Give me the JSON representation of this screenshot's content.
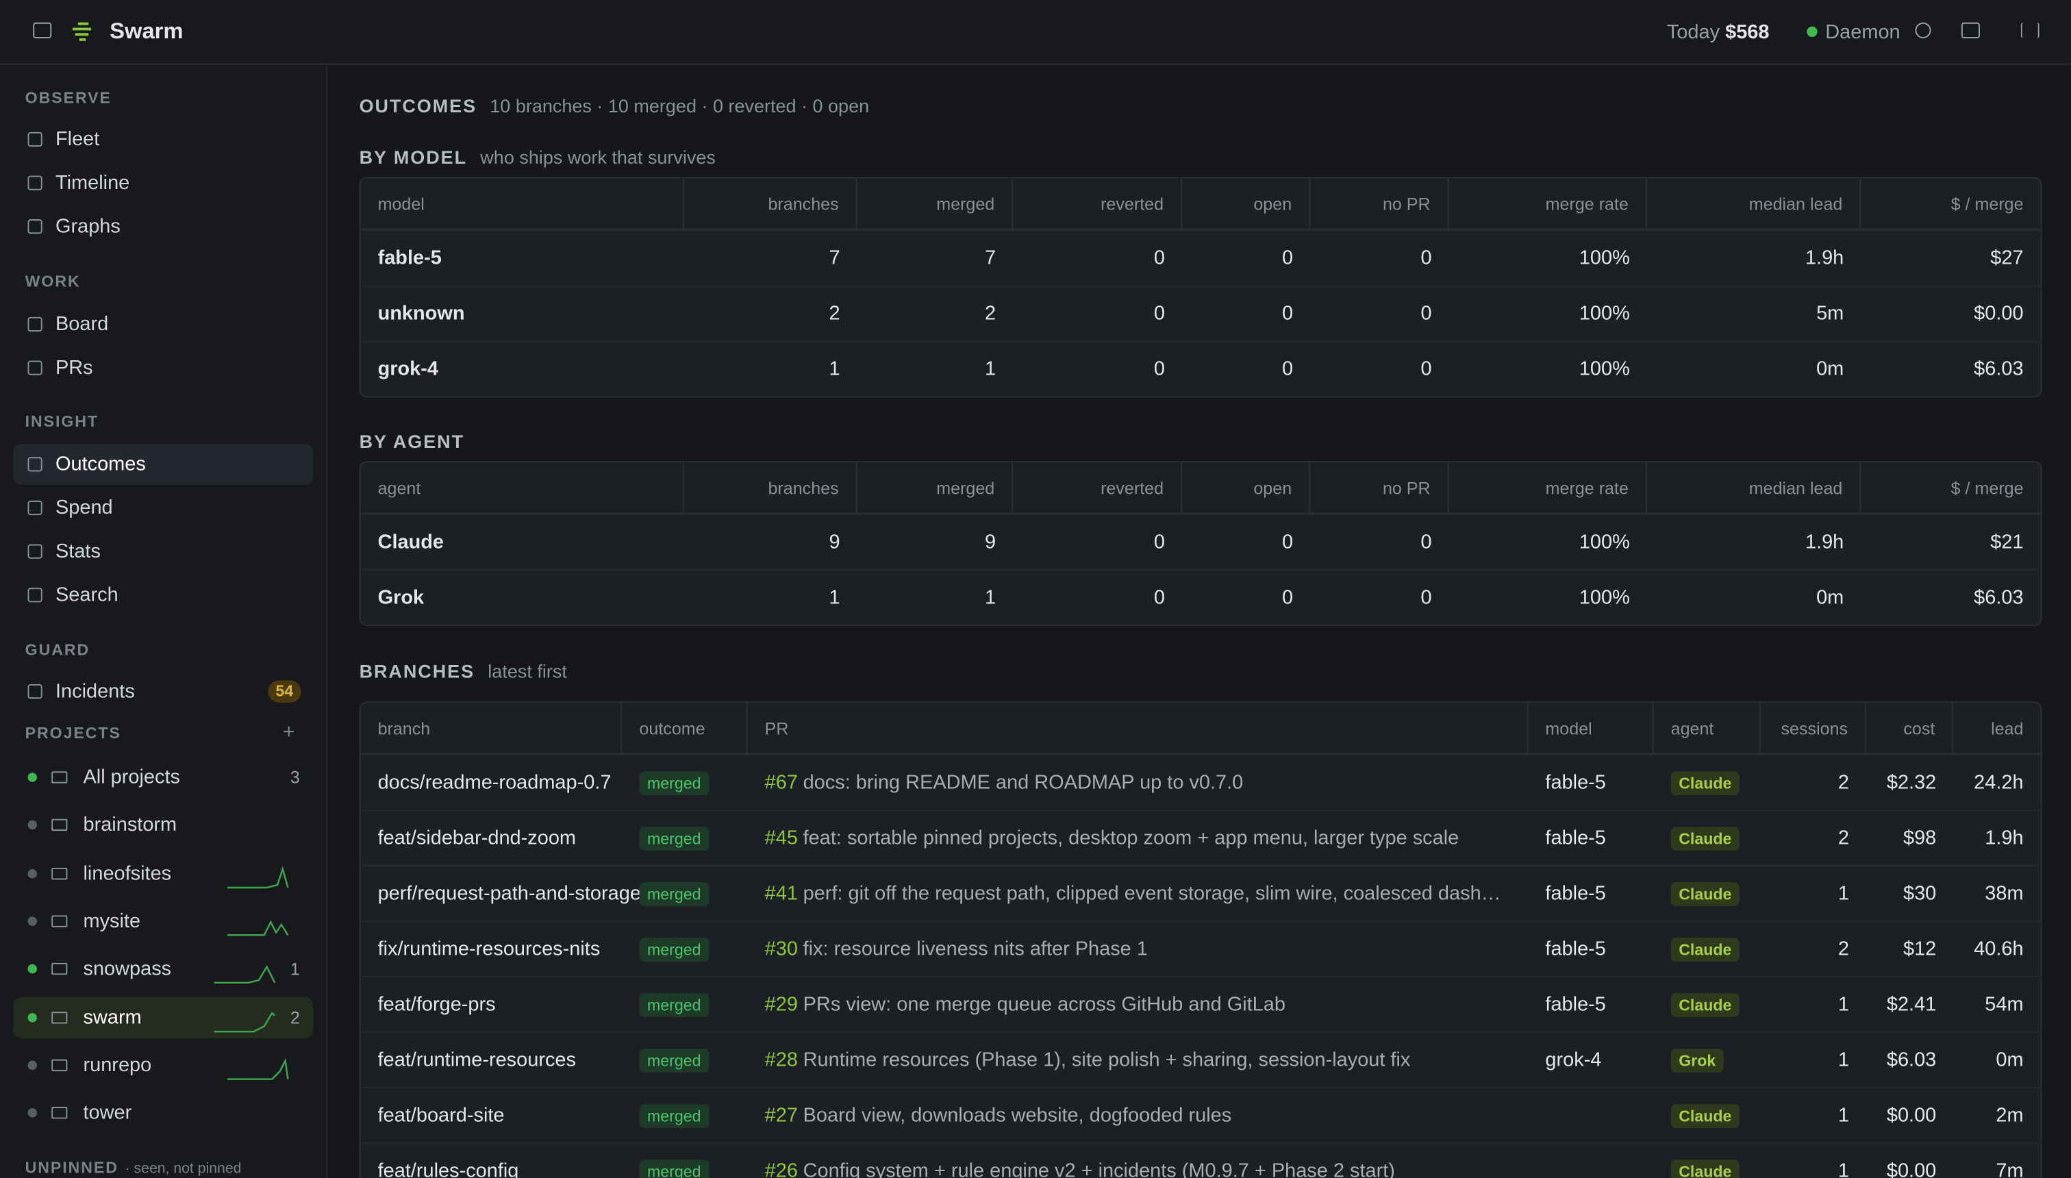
{
  "header": {
    "title": "Swarm",
    "today_label": "Today",
    "today_value": "$568",
    "daemon": "Daemon"
  },
  "sidebar": {
    "sections": [
      {
        "heading": "OBSERVE",
        "items": [
          "Fleet",
          "Timeline",
          "Graphs"
        ]
      },
      {
        "heading": "WORK",
        "items": [
          "Board",
          "PRs"
        ]
      },
      {
        "heading": "INSIGHT",
        "items": [
          "Outcomes",
          "Spend",
          "Stats",
          "Search"
        ]
      },
      {
        "heading": "GUARD",
        "items": [
          "Incidents"
        ],
        "badge": 54
      }
    ],
    "projects": {
      "heading": "PROJECTS",
      "items": [
        {
          "name": "All projects",
          "count": 3
        },
        {
          "name": "brainstorm"
        },
        {
          "name": "lineofsites"
        },
        {
          "name": "mysite"
        },
        {
          "name": "snowpass",
          "count": 1
        },
        {
          "name": "swarm",
          "count": 2
        },
        {
          "name": "runrepo"
        },
        {
          "name": "tower"
        }
      ]
    },
    "unpinned": {
      "heading": "UNPINNED",
      "note": "· seen, not pinned"
    }
  },
  "main": {
    "title": "OUTCOMES",
    "summary": "10 branches · 10 merged · 0 reverted · 0 open",
    "by_model": {
      "title": "BY MODEL",
      "subtitle": "who ships work that survives",
      "columns": [
        "model",
        "branches",
        "merged",
        "reverted",
        "open",
        "no PR",
        "merge rate",
        "median lead",
        "$ / merge"
      ],
      "rows": [
        [
          "fable-5",
          7,
          7,
          0,
          0,
          0,
          "100%",
          "1.9h",
          "$27"
        ],
        [
          "unknown",
          2,
          2,
          0,
          0,
          0,
          "100%",
          "5m",
          "$0.00"
        ],
        [
          "grok-4",
          1,
          1,
          0,
          0,
          0,
          "100%",
          "0m",
          "$6.03"
        ]
      ]
    },
    "by_agent": {
      "title": "BY AGENT",
      "columns": [
        "agent",
        "branches",
        "merged",
        "reverted",
        "open",
        "no PR",
        "merge rate",
        "median lead",
        "$ / merge"
      ],
      "rows": [
        [
          "Claude",
          9,
          9,
          0,
          0,
          0,
          "100%",
          "1.9h",
          "$21"
        ],
        [
          "Grok",
          1,
          1,
          0,
          0,
          0,
          "100%",
          "0m",
          "$6.03"
        ]
      ]
    },
    "branches": {
      "title": "BRANCHES",
      "subtitle": "latest first",
      "columns": [
        "branch",
        "outcome",
        "PR",
        "model",
        "agent",
        "sessions",
        "cost",
        "lead"
      ],
      "rows": [
        {
          "branch": "docs/readme-roadmap-0.7",
          "outcome": "merged",
          "pr": "#67",
          "pr_title": "docs: bring README and ROADMAP up to v0.7.0",
          "model": "fable-5",
          "agent": "Claude",
          "sessions": 2,
          "cost": "$2.32",
          "lead": "24.2h"
        },
        {
          "branch": "feat/sidebar-dnd-zoom",
          "outcome": "merged",
          "pr": "#45",
          "pr_title": "feat: sortable pinned projects, desktop zoom + app menu, larger type scale",
          "model": "fable-5",
          "agent": "Claude",
          "sessions": 2,
          "cost": "$98",
          "lead": "1.9h"
        },
        {
          "branch": "perf/request-path-and-storage",
          "outcome": "merged",
          "pr": "#41",
          "pr_title": "perf: git off the request path, clipped event storage, slim wire, coalesced dash…",
          "model": "fable-5",
          "agent": "Claude",
          "sessions": 1,
          "cost": "$30",
          "lead": "38m"
        },
        {
          "branch": "fix/runtime-resources-nits",
          "outcome": "merged",
          "pr": "#30",
          "pr_title": "fix: resource liveness nits after Phase 1",
          "model": "fable-5",
          "agent": "Claude",
          "sessions": 2,
          "cost": "$12",
          "lead": "40.6h"
        },
        {
          "branch": "feat/forge-prs",
          "outcome": "merged",
          "pr": "#29",
          "pr_title": "PRs view: one merge queue across GitHub and GitLab",
          "model": "fable-5",
          "agent": "Claude",
          "sessions": 1,
          "cost": "$2.41",
          "lead": "54m"
        },
        {
          "branch": "feat/runtime-resources",
          "outcome": "merged",
          "pr": "#28",
          "pr_title": "Runtime resources (Phase 1), site polish + sharing, session-layout fix",
          "model": "grok-4",
          "agent": "Grok",
          "sessions": 1,
          "cost": "$6.03",
          "lead": "0m"
        },
        {
          "branch": "feat/board-site",
          "outcome": "merged",
          "pr": "#27",
          "pr_title": "Board view, downloads website, dogfooded rules",
          "agent": "Claude",
          "sessions": 1,
          "cost": "$0.00",
          "lead": "2m"
        },
        {
          "branch": "feat/rules-config",
          "outcome": "merged",
          "pr": "#26",
          "pr_title": "Config system + rule engine v2 + incidents (M0.9.7 + Phase 2 start)",
          "agent": "Claude",
          "sessions": 1,
          "cost": "$0.00",
          "lead": "7m"
        }
      ]
    }
  }
}
